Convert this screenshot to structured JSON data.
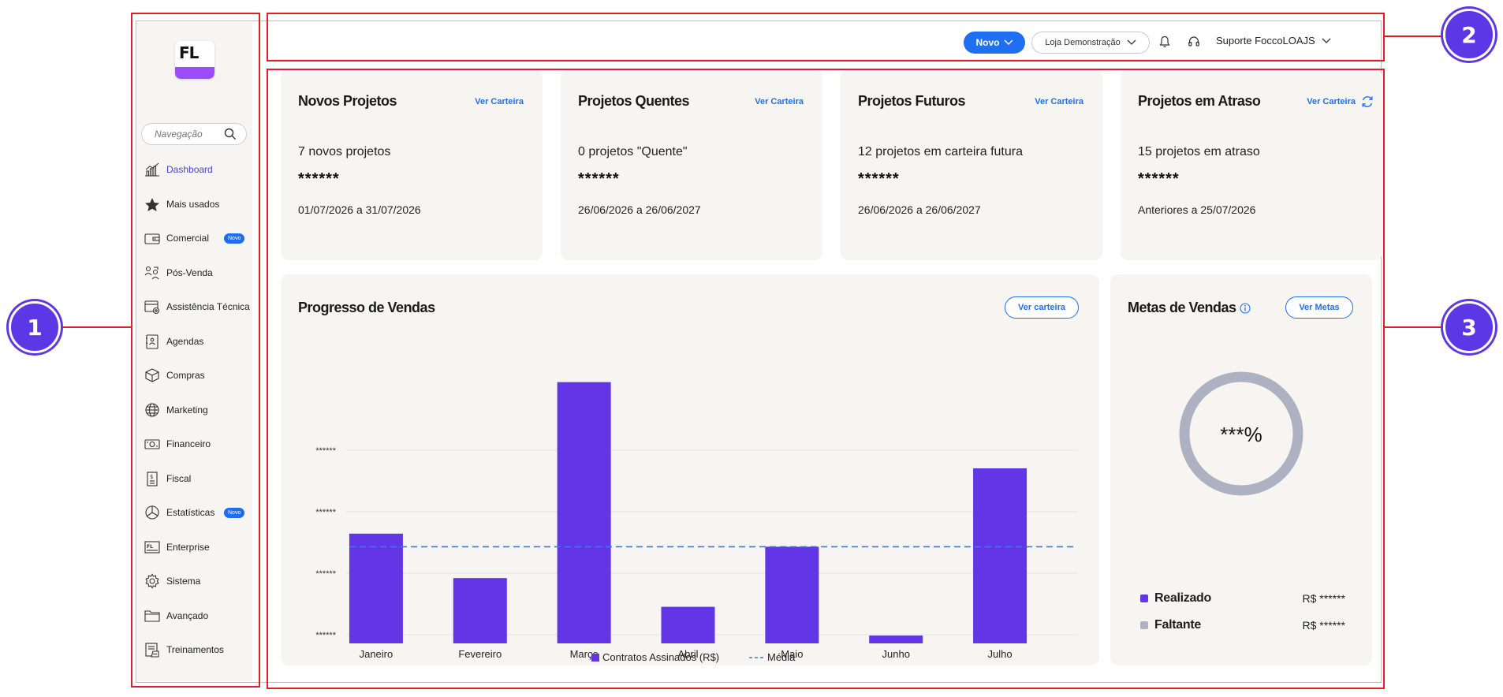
{
  "annotations": [
    {
      "label": "1"
    },
    {
      "label": "2"
    },
    {
      "label": "3"
    }
  ],
  "sidebar": {
    "logo_text": "FL",
    "search_placeholder": "Navegação",
    "items": [
      {
        "label": "Dashboard",
        "icon": "chart-icon",
        "active": true
      },
      {
        "label": "Mais usados",
        "icon": "star-icon"
      },
      {
        "label": "Comercial",
        "icon": "wallet-icon",
        "badge": "Novo"
      },
      {
        "label": "Pós-Venda",
        "icon": "handshake-icon"
      },
      {
        "label": "Assistência Técnica",
        "icon": "tool-icon"
      },
      {
        "label": "Agendas",
        "icon": "calendar-icon"
      },
      {
        "label": "Compras",
        "icon": "box-icon"
      },
      {
        "label": "Marketing",
        "icon": "globe-icon"
      },
      {
        "label": "Financeiro",
        "icon": "money-icon"
      },
      {
        "label": "Fiscal",
        "icon": "receipt-icon"
      },
      {
        "label": "Estatísticas",
        "icon": "pie-icon",
        "badge": "Novo"
      },
      {
        "label": "Enterprise",
        "icon": "enterprise-icon"
      },
      {
        "label": "Sistema",
        "icon": "gear-icon"
      },
      {
        "label": "Avançado",
        "icon": "folder-icon"
      },
      {
        "label": "Treinamentos",
        "icon": "training-icon"
      }
    ]
  },
  "header": {
    "new_button": "Novo",
    "store_select": "Loja Demonstração",
    "user_name": "Suporte FoccoLOAJS"
  },
  "kpis": [
    {
      "title": "Novos Projetos",
      "link": "Ver Carteira",
      "subtitle": "7 novos projetos",
      "masked_value": "******",
      "range": "01/07/2026 a 31/07/2026"
    },
    {
      "title": "Projetos Quentes",
      "link": "Ver Carteira",
      "subtitle": "0 projetos \"Quente\"",
      "masked_value": "******",
      "range": "26/06/2026 a 26/06/2027"
    },
    {
      "title": "Projetos Futuros",
      "link": "Ver Carteira",
      "subtitle": "12 projetos em carteira futura",
      "masked_value": "******",
      "range": "26/06/2026 a 26/06/2027"
    },
    {
      "title": "Projetos em Atraso",
      "link": "Ver Carteira",
      "subtitle": "15 projetos em atraso",
      "masked_value": "******",
      "range": "Anteriores a 25/07/2026"
    }
  ],
  "sales_progress": {
    "title": "Progresso de Vendas",
    "button": "Ver carteira"
  },
  "chart_data": {
    "type": "bar",
    "title": "Progresso de Vendas",
    "categories": [
      "Janeiro",
      "Fevereiro",
      "Março",
      "Abril",
      "Maio",
      "Junho",
      "Julho"
    ],
    "series": [
      {
        "name": "Contratos Assinados (R$)",
        "values": [
          42,
          25,
          100,
          14,
          37,
          3,
          67
        ]
      }
    ],
    "average_line": {
      "name": "Média",
      "value": 37
    },
    "y_tick_labels": [
      "******",
      "******",
      "******",
      "******"
    ],
    "ylim": [
      0,
      102
    ],
    "colors": {
      "bars": "#6236e6",
      "average": "#2f7fe0"
    },
    "legend": "bottom",
    "grid": true
  },
  "sales_goals": {
    "title": "Metas de Vendas",
    "button": "Ver Metas",
    "percent_label": "***%",
    "legend": [
      {
        "label": "Realizado",
        "value": "R$ ******",
        "color": "#6236e6"
      },
      {
        "label": "Faltante",
        "value": "R$ ******",
        "color": "#aeb1c2"
      }
    ]
  }
}
